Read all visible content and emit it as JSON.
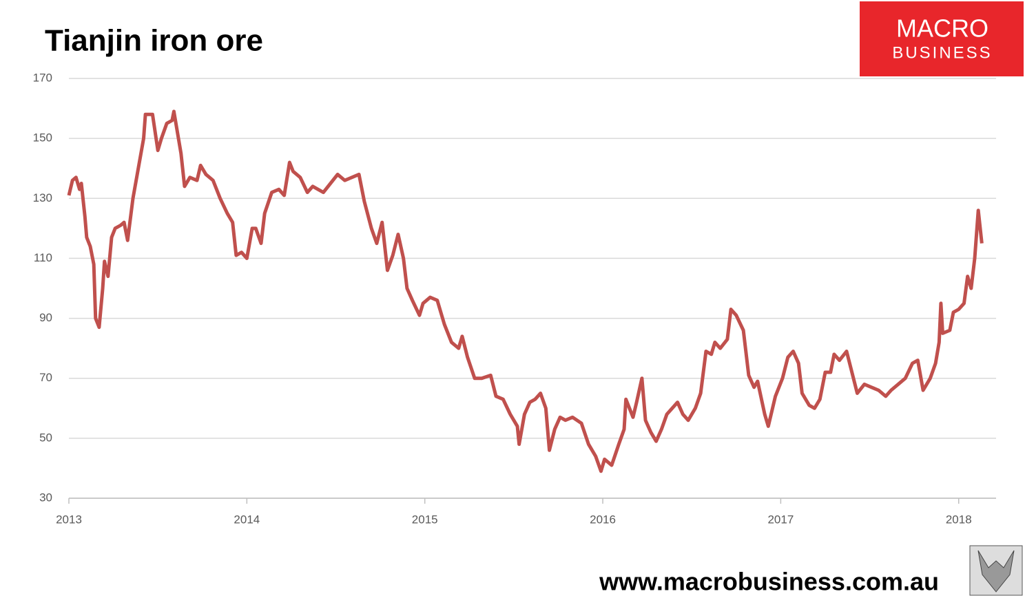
{
  "chart_data": {
    "type": "line",
    "title": "Tianjin iron ore",
    "annotations": [
      "MACRO",
      "BUSINESS",
      "www.macrobusiness.com.au"
    ],
    "xlim": [
      2013,
      2018.21
    ],
    "xticks": [
      2013,
      2014,
      2015,
      2016,
      2017,
      2018
    ],
    "ylim": [
      30,
      170
    ],
    "yticks": [
      30,
      50,
      70,
      90,
      110,
      130,
      150,
      170
    ],
    "grid": true,
    "series": [
      {
        "name": "Tianjin iron ore",
        "color": "#c0504d",
        "x": [
          2013.0,
          2013.02,
          2013.04,
          2013.06,
          2013.07,
          2013.09,
          2013.1,
          2013.12,
          2013.14,
          2013.15,
          2013.17,
          2013.19,
          2013.2,
          2013.22,
          2013.24,
          2013.26,
          2013.29,
          2013.31,
          2013.33,
          2013.36,
          2013.39,
          2013.42,
          2013.43,
          2013.47,
          2013.5,
          2013.52,
          2013.55,
          2013.58,
          2013.59,
          2013.61,
          2013.63,
          2013.65,
          2013.68,
          2013.72,
          2013.74,
          2013.77,
          2013.81,
          2013.85,
          2013.89,
          2013.92,
          2013.94,
          2013.97,
          2014.0,
          2014.03,
          2014.05,
          2014.08,
          2014.1,
          2014.14,
          2014.18,
          2014.21,
          2014.24,
          2014.26,
          2014.3,
          2014.34,
          2014.37,
          2014.43,
          2014.51,
          2014.55,
          2014.59,
          2014.63,
          2014.66,
          2014.7,
          2014.73,
          2014.76,
          2014.79,
          2014.82,
          2014.85,
          2014.88,
          2014.9,
          2014.93,
          2014.97,
          2014.99,
          2015.03,
          2015.07,
          2015.11,
          2015.15,
          2015.19,
          2015.21,
          2015.24,
          2015.28,
          2015.32,
          2015.37,
          2015.4,
          2015.44,
          2015.48,
          2015.52,
          2015.53,
          2015.56,
          2015.59,
          2015.62,
          2015.65,
          2015.68,
          2015.7,
          2015.73,
          2015.76,
          2015.79,
          2015.83,
          2015.88,
          2015.92,
          2015.96,
          2015.99,
          2016.01,
          2016.05,
          2016.09,
          2016.12,
          2016.13,
          2016.17,
          2016.19,
          2016.22,
          2016.24,
          2016.27,
          2016.3,
          2016.33,
          2016.36,
          2016.39,
          2016.42,
          2016.45,
          2016.48,
          2016.52,
          2016.55,
          2016.58,
          2016.61,
          2016.63,
          2016.66,
          2016.7,
          2016.72,
          2016.75,
          2016.79,
          2016.82,
          2016.85,
          2016.87,
          2016.91,
          2016.93,
          2016.97,
          2017.01,
          2017.04,
          2017.07,
          2017.1,
          2017.12,
          2017.16,
          2017.19,
          2017.22,
          2017.25,
          2017.28,
          2017.3,
          2017.33,
          2017.37,
          2017.4,
          2017.43,
          2017.47,
          2017.51,
          2017.55,
          2017.59,
          2017.62,
          2017.66,
          2017.7,
          2017.74,
          2017.77,
          2017.8,
          2017.84,
          2017.87,
          2017.89,
          2017.9,
          2017.91,
          2017.95,
          2017.97,
          2018.0,
          2018.03,
          2018.05,
          2018.07,
          2018.09,
          2018.1,
          2018.11,
          2018.13
        ],
        "values": [
          131,
          136,
          137,
          133,
          135,
          124,
          117,
          114,
          108,
          90,
          87,
          100,
          109,
          104,
          117,
          120,
          121,
          122,
          116,
          130,
          140,
          150,
          158,
          158,
          146,
          150,
          155,
          156,
          159,
          152,
          145,
          134,
          137,
          136,
          141,
          138,
          136,
          130,
          125,
          122,
          111,
          112,
          110,
          120,
          120,
          115,
          125,
          132,
          133,
          131,
          142,
          139,
          137,
          132,
          134,
          132,
          138,
          136,
          137,
          138,
          129,
          120,
          115,
          122,
          106,
          111,
          118,
          110,
          100,
          96,
          91,
          95,
          97,
          96,
          88,
          82,
          80,
          84,
          77,
          70,
          70,
          71,
          64,
          63,
          58,
          54,
          48,
          58,
          62,
          63,
          65,
          60,
          46,
          53,
          57,
          56,
          57,
          55,
          48,
          44,
          39,
          43,
          41,
          48,
          53,
          63,
          57,
          62,
          70,
          56,
          52,
          49,
          53,
          58,
          60,
          62,
          58,
          56,
          60,
          65,
          79,
          78,
          82,
          80,
          83,
          93,
          91,
          86,
          71,
          67,
          69,
          58,
          54,
          64,
          70,
          77,
          79,
          75,
          65,
          61,
          60,
          63,
          72,
          72,
          78,
          76,
          79,
          72,
          65,
          68,
          67,
          66,
          64,
          66,
          68,
          70,
          75,
          76,
          66,
          70,
          75,
          82,
          95,
          85,
          86,
          92,
          93,
          95,
          104,
          100,
          110,
          118,
          126,
          115
        ]
      }
    ]
  }
}
